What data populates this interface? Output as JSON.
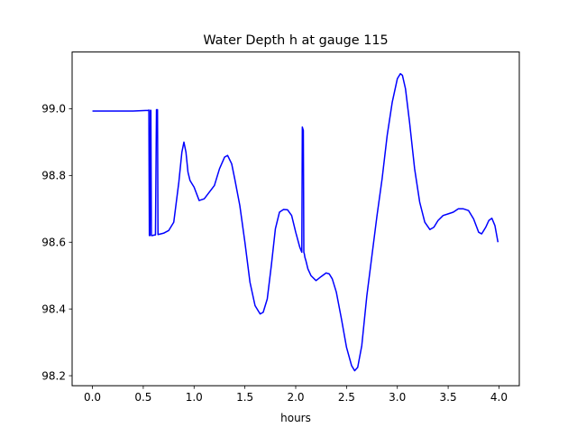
{
  "chart_data": {
    "type": "line",
    "title": "Water Depth h at gauge 115",
    "xlabel": "hours",
    "ylabel": "",
    "xlim": [
      -0.2,
      4.2
    ],
    "ylim": [
      98.17,
      99.17
    ],
    "xticks": [
      0.0,
      0.5,
      1.0,
      1.5,
      2.0,
      2.5,
      3.0,
      3.5,
      4.0
    ],
    "xtick_labels": [
      "0.0",
      "0.5",
      "1.0",
      "1.5",
      "2.0",
      "2.5",
      "3.0",
      "3.5",
      "4.0"
    ],
    "yticks": [
      98.2,
      98.4,
      98.6,
      98.8,
      99.0
    ],
    "ytick_labels": [
      "98.2",
      "98.4",
      "98.6",
      "98.8",
      "99.0"
    ],
    "grid": false,
    "legend": "none",
    "series": [
      {
        "color": "#0000ff",
        "x": [
          0.0,
          0.2,
          0.4,
          0.55,
          0.555,
          0.56,
          0.565,
          0.57,
          0.575,
          0.58,
          0.585,
          0.59,
          0.6,
          0.62,
          0.63,
          0.635,
          0.64,
          0.645,
          0.65,
          0.655,
          0.66,
          0.7,
          0.75,
          0.8,
          0.85,
          0.88,
          0.9,
          0.92,
          0.94,
          0.96,
          0.98,
          1.0,
          1.05,
          1.1,
          1.15,
          1.2,
          1.25,
          1.3,
          1.33,
          1.37,
          1.4,
          1.45,
          1.5,
          1.55,
          1.6,
          1.65,
          1.68,
          1.72,
          1.76,
          1.8,
          1.84,
          1.88,
          1.92,
          1.96,
          2.0,
          2.04,
          2.06,
          2.065,
          2.07,
          2.075,
          2.08,
          2.085,
          2.09,
          2.1,
          2.12,
          2.15,
          2.2,
          2.25,
          2.3,
          2.33,
          2.36,
          2.4,
          2.45,
          2.5,
          2.55,
          2.58,
          2.61,
          2.65,
          2.7,
          2.75,
          2.8,
          2.85,
          2.9,
          2.95,
          3.0,
          3.03,
          3.05,
          3.08,
          3.12,
          3.17,
          3.22,
          3.27,
          3.32,
          3.36,
          3.4,
          3.45,
          3.5,
          3.55,
          3.6,
          3.65,
          3.7,
          3.75,
          3.8,
          3.83,
          3.87,
          3.9,
          3.93,
          3.96,
          3.99
        ],
        "y": [
          98.993,
          98.993,
          98.993,
          98.995,
          98.996,
          98.62,
          98.62,
          98.995,
          98.995,
          98.62,
          98.62,
          98.62,
          98.621,
          98.622,
          98.997,
          98.997,
          98.997,
          98.623,
          98.623,
          98.624,
          98.624,
          98.627,
          98.635,
          98.66,
          98.78,
          98.87,
          98.9,
          98.87,
          98.81,
          98.785,
          98.775,
          98.765,
          98.725,
          98.73,
          98.75,
          98.77,
          98.82,
          98.855,
          98.86,
          98.835,
          98.79,
          98.71,
          98.6,
          98.48,
          98.41,
          98.385,
          98.39,
          98.43,
          98.53,
          98.64,
          98.69,
          98.698,
          98.697,
          98.68,
          98.63,
          98.585,
          98.57,
          98.945,
          98.94,
          98.935,
          98.57,
          98.565,
          98.555,
          98.545,
          98.52,
          98.5,
          98.485,
          98.497,
          98.508,
          98.505,
          98.49,
          98.45,
          98.37,
          98.285,
          98.23,
          98.215,
          98.225,
          98.29,
          98.44,
          98.56,
          98.68,
          98.79,
          98.92,
          99.02,
          99.09,
          99.105,
          99.1,
          99.06,
          98.96,
          98.82,
          98.72,
          98.66,
          98.638,
          98.645,
          98.665,
          98.68,
          98.685,
          98.69,
          98.7,
          98.7,
          98.695,
          98.67,
          98.63,
          98.625,
          98.645,
          98.665,
          98.672,
          98.65,
          98.6
        ]
      }
    ]
  }
}
